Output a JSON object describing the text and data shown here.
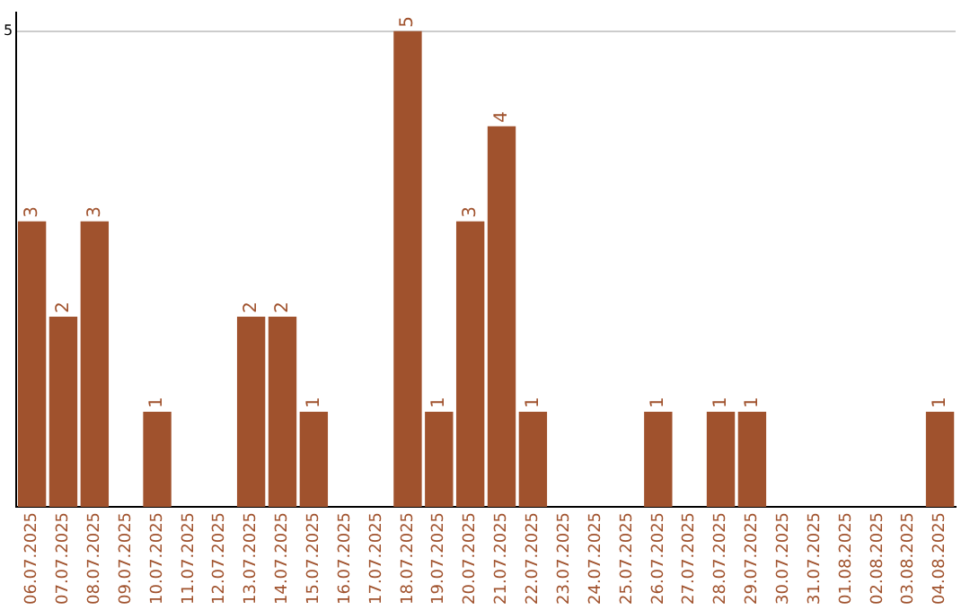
{
  "chart_data": {
    "type": "bar",
    "categories": [
      "06.07.2025",
      "07.07.2025",
      "08.07.2025",
      "09.07.2025",
      "10.07.2025",
      "11.07.2025",
      "12.07.2025",
      "13.07.2025",
      "14.07.2025",
      "15.07.2025",
      "16.07.2025",
      "17.07.2025",
      "18.07.2025",
      "19.07.2025",
      "20.07.2025",
      "21.07.2025",
      "22.07.2025",
      "23.07.2025",
      "24.07.2025",
      "25.07.2025",
      "26.07.2025",
      "27.07.2025",
      "28.07.2025",
      "29.07.2025",
      "30.07.2025",
      "31.07.2025",
      "01.08.2025",
      "02.08.2025",
      "03.08.2025",
      "04.08.2025"
    ],
    "values": [
      3,
      2,
      3,
      0,
      1,
      0,
      0,
      2,
      2,
      1,
      0,
      0,
      5,
      1,
      3,
      4,
      1,
      0,
      0,
      0,
      1,
      0,
      1,
      1,
      0,
      0,
      0,
      0,
      0,
      1
    ],
    "value_labels": [
      "3",
      "2",
      "3",
      null,
      "1",
      null,
      null,
      "2",
      "2",
      "1",
      null,
      null,
      "5",
      "1",
      "3",
      "4",
      "1",
      null,
      null,
      null,
      "1",
      null,
      "1",
      "1",
      null,
      null,
      null,
      null,
      null,
      "1"
    ],
    "color": "#a0522d",
    "ylim": [
      0,
      5.2
    ],
    "yticks": [
      5
    ],
    "grid": "y",
    "legend": false
  }
}
